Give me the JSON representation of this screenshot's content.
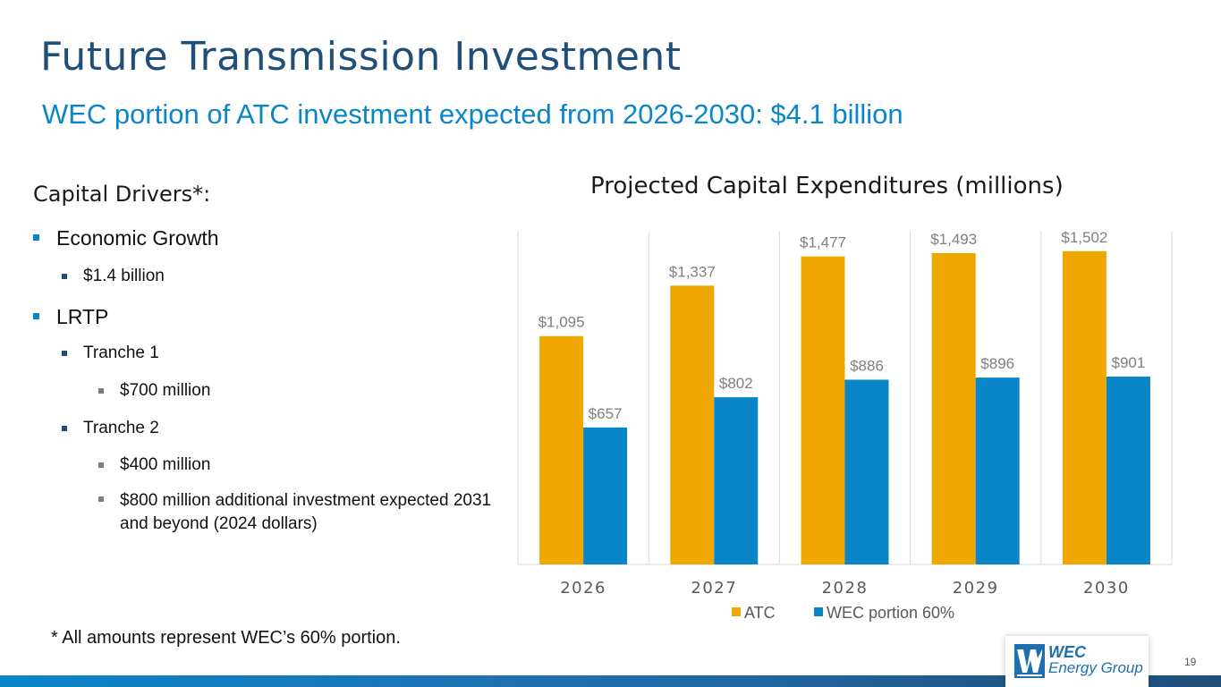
{
  "slide": {
    "title": "Future Transmission Investment",
    "subtitle": "WEC portion of ATC investment expected from 2026-2030: $4.1 billion",
    "page_number": "19"
  },
  "drivers": {
    "heading": "Capital Drivers*:",
    "items": [
      {
        "level": 1,
        "text": "Economic Growth"
      },
      {
        "level": 2,
        "text": "$1.4 billion"
      },
      {
        "level": 1,
        "text": "LRTP"
      },
      {
        "level": 2,
        "text": "Tranche 1"
      },
      {
        "level": 3,
        "text": "$700 million"
      },
      {
        "level": 2,
        "text": "Tranche 2"
      },
      {
        "level": 3,
        "text": "$400 million"
      },
      {
        "level": 3,
        "text": "$800 million additional investment expected 2031 and beyond (2024 dollars)"
      }
    ],
    "footnote": "* All amounts represent WEC’s 60% portion."
  },
  "logo": {
    "line1": "WEC",
    "line2": "Energy Group"
  },
  "colors": {
    "atc": "#f0a800",
    "wec": "#0a86c8",
    "title": "#1f4e79",
    "subtitle": "#0a86c8"
  },
  "chart_data": {
    "type": "bar",
    "title": "Projected Capital Expenditures (millions)",
    "categories": [
      "2026",
      "2027",
      "2028",
      "2029",
      "2030"
    ],
    "series": [
      {
        "name": "ATC",
        "values": [
          1095,
          1337,
          1477,
          1493,
          1502
        ],
        "labels": [
          "$1,095",
          "$1,337",
          "$1,477",
          "$1,493",
          "$1,502"
        ]
      },
      {
        "name": "WEC portion 60%",
        "values": [
          657,
          802,
          886,
          896,
          901
        ],
        "labels": [
          "$657",
          "$802",
          "$886",
          "$896",
          "$901"
        ]
      }
    ],
    "xlabel": "",
    "ylabel": "",
    "ylim": [
      0,
      1600
    ],
    "legend": "bottom"
  }
}
